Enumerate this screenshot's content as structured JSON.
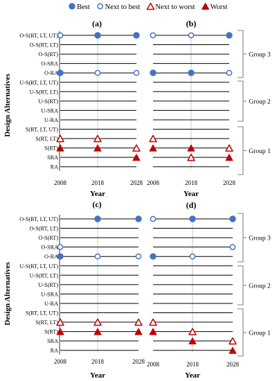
{
  "legend": {
    "items": [
      {
        "label": "Best",
        "marker": "filled-circle",
        "color": "#4472c4"
      },
      {
        "label": "Next to best",
        "marker": "open-circle",
        "color": "#4472c4"
      },
      {
        "label": "Next to worst",
        "marker": "open-triangle",
        "color": "#c00000"
      },
      {
        "label": "Worst",
        "marker": "filled-triangle",
        "color": "#c00000"
      }
    ]
  },
  "ylabel": "Design Alternatives",
  "xlabel": "Year",
  "groups": [
    {
      "label": "Group 3",
      "rows": [
        0,
        4
      ]
    },
    {
      "label": "Group 2",
      "rows": [
        5,
        9
      ]
    },
    {
      "label": "Group 1",
      "rows": [
        10,
        14
      ]
    }
  ],
  "chart_data": [
    {
      "type": "scatter",
      "title": "(a)",
      "categories": [
        "O-S(RT, LT, UT)",
        "O-S(RT, LT)",
        "O-S(RT)",
        "O-SRA",
        "O-RA",
        "U-S(RT, LT, UT)",
        "U-S(RT, LT)",
        "U-S(RT)",
        "U-SRA",
        "U-RA",
        "S(RT, LT, UT)",
        "S(RT, LT)",
        "S(RT)",
        "SRA",
        "RA"
      ],
      "x": [
        2008,
        2018,
        2028
      ],
      "xlabel": "Year",
      "ylabel": "Design Alternatives",
      "points": [
        {
          "alt": "O-S(RT, LT, UT)",
          "year": 2008,
          "rank": "Next to best"
        },
        {
          "alt": "O-S(RT, LT, UT)",
          "year": 2018,
          "rank": "Best"
        },
        {
          "alt": "O-S(RT, LT, UT)",
          "year": 2028,
          "rank": "Best"
        },
        {
          "alt": "O-RA",
          "year": 2008,
          "rank": "Best"
        },
        {
          "alt": "O-RA",
          "year": 2018,
          "rank": "Next to best"
        },
        {
          "alt": "O-RA",
          "year": 2028,
          "rank": "Next to best"
        },
        {
          "alt": "S(RT, LT)",
          "year": 2008,
          "rank": "Next to worst"
        },
        {
          "alt": "S(RT, LT)",
          "year": 2018,
          "rank": "Next to worst"
        },
        {
          "alt": "S(RT)",
          "year": 2008,
          "rank": "Worst"
        },
        {
          "alt": "S(RT)",
          "year": 2018,
          "rank": "Worst"
        },
        {
          "alt": "S(RT)",
          "year": 2028,
          "rank": "Next to worst"
        },
        {
          "alt": "SRA",
          "year": 2028,
          "rank": "Worst"
        }
      ]
    },
    {
      "type": "scatter",
      "title": "(b)",
      "categories": [
        "O-S(RT, LT, UT)",
        "O-S(RT, LT)",
        "O-S(RT)",
        "O-SRA",
        "O-RA",
        "U-S(RT, LT, UT)",
        "U-S(RT, LT)",
        "U-S(RT)",
        "U-SRA",
        "U-RA",
        "S(RT, LT, UT)",
        "S(RT, LT)",
        "S(RT)",
        "SRA",
        "RA"
      ],
      "x": [
        2008,
        2018,
        2028
      ],
      "xlabel": "Year",
      "points": [
        {
          "alt": "O-S(RT, LT, UT)",
          "year": 2008,
          "rank": "Next to best"
        },
        {
          "alt": "O-S(RT, LT, UT)",
          "year": 2018,
          "rank": "Next to best"
        },
        {
          "alt": "O-S(RT, LT, UT)",
          "year": 2028,
          "rank": "Best"
        },
        {
          "alt": "O-RA",
          "year": 2008,
          "rank": "Best"
        },
        {
          "alt": "O-RA",
          "year": 2018,
          "rank": "Best"
        },
        {
          "alt": "O-RA",
          "year": 2028,
          "rank": "Next to best"
        },
        {
          "alt": "S(RT, LT)",
          "year": 2008,
          "rank": "Next to worst"
        },
        {
          "alt": "S(RT)",
          "year": 2008,
          "rank": "Worst"
        },
        {
          "alt": "S(RT)",
          "year": 2018,
          "rank": "Worst"
        },
        {
          "alt": "S(RT)",
          "year": 2028,
          "rank": "Next to worst"
        },
        {
          "alt": "SRA",
          "year": 2018,
          "rank": "Next to worst"
        },
        {
          "alt": "SRA",
          "year": 2028,
          "rank": "Worst"
        }
      ]
    },
    {
      "type": "scatter",
      "title": "(c)",
      "categories": [
        "O-S(RT, LT, UT)",
        "O-S(RT, LT)",
        "O-S(RT)",
        "O-SRA",
        "O-RA",
        "U-S(RT, LT, UT)",
        "U-S(RT, LT)",
        "U-S(RT)",
        "U-SRA",
        "U-RA",
        "S(RT, LT, UT)",
        "S(RT, LT)",
        "S(RT)",
        "SRA",
        "RA"
      ],
      "x": [
        2008,
        2018,
        2028
      ],
      "xlabel": "Year",
      "ylabel": "Design Alternatives",
      "points": [
        {
          "alt": "O-S(RT, LT, UT)",
          "year": 2018,
          "rank": "Best"
        },
        {
          "alt": "O-S(RT, LT, UT)",
          "year": 2028,
          "rank": "Best"
        },
        {
          "alt": "O-SRA",
          "year": 2008,
          "rank": "Next to best"
        },
        {
          "alt": "O-RA",
          "year": 2008,
          "rank": "Best"
        },
        {
          "alt": "O-RA",
          "year": 2018,
          "rank": "Next to best"
        },
        {
          "alt": "O-RA",
          "year": 2028,
          "rank": "Next to best"
        },
        {
          "alt": "S(RT, LT)",
          "year": 2008,
          "rank": "Next to worst"
        },
        {
          "alt": "S(RT, LT)",
          "year": 2018,
          "rank": "Next to worst"
        },
        {
          "alt": "S(RT, LT)",
          "year": 2028,
          "rank": "Next to worst"
        },
        {
          "alt": "S(RT)",
          "year": 2008,
          "rank": "Worst"
        },
        {
          "alt": "S(RT)",
          "year": 2018,
          "rank": "Worst"
        },
        {
          "alt": "S(RT)",
          "year": 2028,
          "rank": "Worst"
        }
      ]
    },
    {
      "type": "scatter",
      "title": "(d)",
      "categories": [
        "O-S(RT, LT, UT)",
        "O-S(RT, LT)",
        "O-S(RT)",
        "O-SRA",
        "O-RA",
        "U-S(RT, LT, UT)",
        "U-S(RT, LT)",
        "U-S(RT)",
        "U-SRA",
        "U-RA",
        "S(RT, LT, UT)",
        "S(RT, LT)",
        "S(RT)",
        "SRA",
        "RA"
      ],
      "x": [
        2008,
        2018,
        2028
      ],
      "xlabel": "Year",
      "points": [
        {
          "alt": "O-S(RT, LT, UT)",
          "year": 2008,
          "rank": "Next to best"
        },
        {
          "alt": "O-S(RT, LT, UT)",
          "year": 2018,
          "rank": "Best"
        },
        {
          "alt": "O-S(RT, LT, UT)",
          "year": 2028,
          "rank": "Best"
        },
        {
          "alt": "O-SRA",
          "year": 2028,
          "rank": "Next to best"
        },
        {
          "alt": "O-RA",
          "year": 2008,
          "rank": "Best"
        },
        {
          "alt": "O-RA",
          "year": 2018,
          "rank": "Next to best"
        },
        {
          "alt": "S(RT, LT)",
          "year": 2008,
          "rank": "Next to worst"
        },
        {
          "alt": "S(RT)",
          "year": 2008,
          "rank": "Worst"
        },
        {
          "alt": "S(RT)",
          "year": 2018,
          "rank": "Next to worst"
        },
        {
          "alt": "SRA",
          "year": 2018,
          "rank": "Worst"
        },
        {
          "alt": "SRA",
          "year": 2028,
          "rank": "Next to worst"
        },
        {
          "alt": "RA",
          "year": 2028,
          "rank": "Worst"
        }
      ]
    }
  ]
}
